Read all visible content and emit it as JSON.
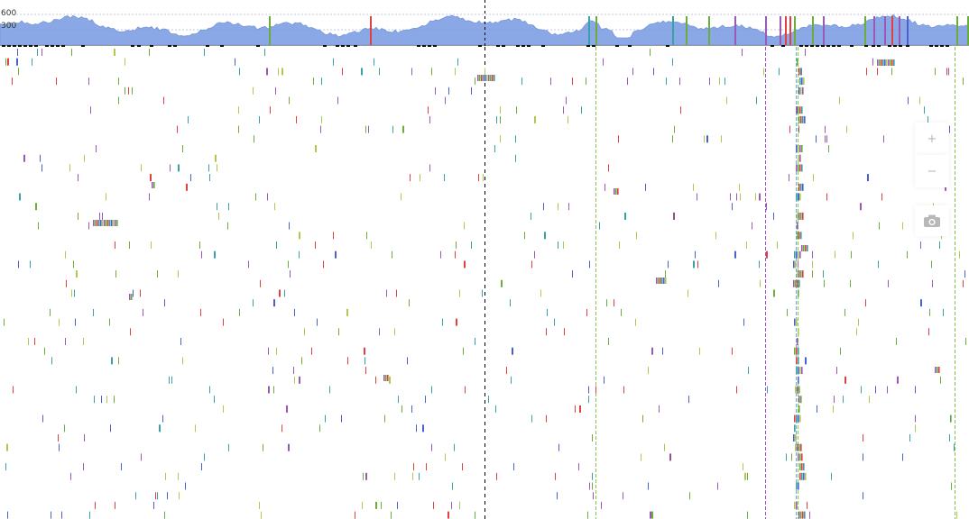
{
  "coverage_track": {
    "axis_labels": {
      "upper": "600",
      "lower": "300"
    },
    "fill_color": "#8aa8e6",
    "fill_stroke_color": "#7896dc",
    "gridline_color": "#7f96c4",
    "baseline_color": "#9a9a9a"
  },
  "variant_colors": [
    "#9b59b6",
    "#6aad3a",
    "#e04040",
    "#3aa0a8",
    "#4a5fd0",
    "#b0c850"
  ],
  "reference_line": {
    "style": "dashed",
    "color": "#000000"
  },
  "marker_lines": {
    "green_color": "#8ec24a",
    "purple_color": "#9a52c8",
    "teal_color": "#5ab6c6"
  },
  "toolbar": {
    "zoom_in_label": "+",
    "zoom_out_label": "−",
    "screenshot_label": "camera"
  }
}
